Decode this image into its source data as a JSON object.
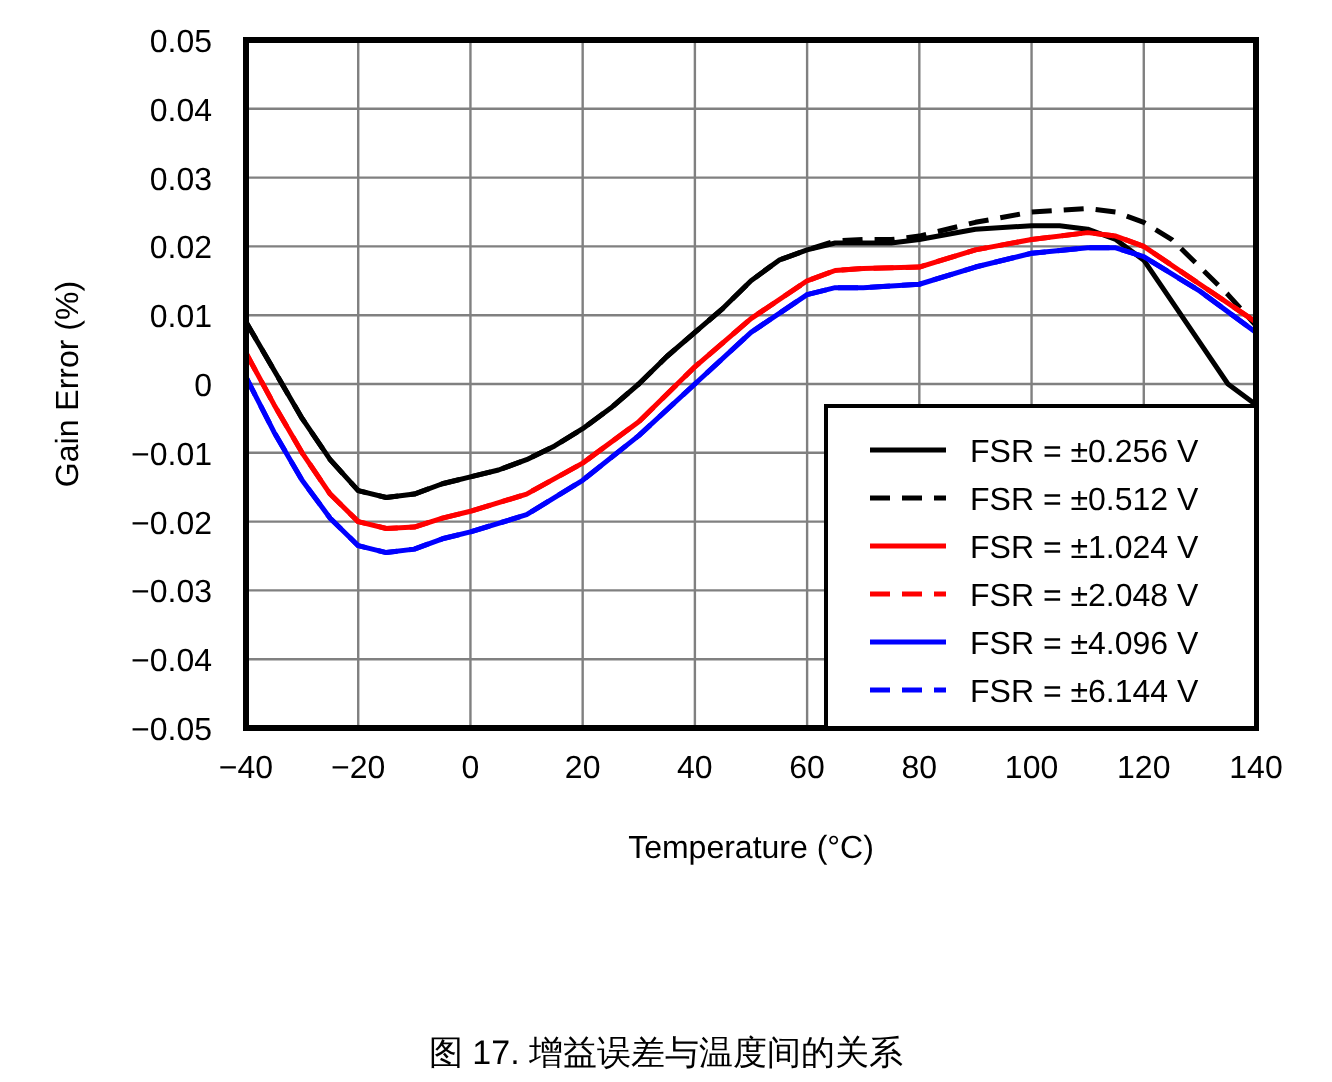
{
  "chart_data": {
    "type": "line",
    "xlabel": "Temperature (°C)",
    "ylabel": "Gain Error (%)",
    "xlim": [
      -40,
      140
    ],
    "xticks": [
      {
        "value": -40,
        "label": "−40"
      },
      {
        "value": -20,
        "label": "−20"
      },
      0,
      20,
      40,
      60,
      80,
      100,
      120,
      140
    ],
    "ylim": [
      -0.05,
      0.05
    ],
    "yticks": [
      {
        "value": -0.05,
        "label": "−0.05"
      },
      {
        "value": -0.04,
        "label": "−0.04"
      },
      {
        "value": -0.03,
        "label": "−0.03"
      },
      {
        "value": -0.02,
        "label": "−0.02"
      },
      {
        "value": -0.01,
        "label": "−0.01"
      },
      0,
      0.01,
      0.02,
      0.03,
      0.04,
      0.05
    ],
    "grid": true,
    "legend": "bottom right",
    "series": [
      {
        "name": "FSR = ±0.256 V",
        "color": "#000000",
        "line_style": "solid",
        "x": [
          -40,
          -35,
          -30,
          -25,
          -20,
          -15,
          -10,
          -5,
          0,
          5,
          10,
          15,
          20,
          25,
          30,
          35,
          40,
          45,
          50,
          55,
          60,
          65,
          70,
          75,
          80,
          90,
          100,
          105,
          110,
          115,
          120,
          125,
          130,
          135,
          140
        ],
        "values": [
          0.009,
          0.002,
          -0.005,
          -0.011,
          -0.0155,
          -0.0165,
          -0.016,
          -0.0145,
          -0.0135,
          -0.0125,
          -0.011,
          -0.009,
          -0.0065,
          -0.0035,
          0.0,
          0.004,
          0.0075,
          0.011,
          0.015,
          0.018,
          0.0195,
          0.0205,
          0.0205,
          0.0205,
          0.021,
          0.0225,
          0.023,
          0.023,
          0.0225,
          0.021,
          0.018,
          0.012,
          0.006,
          0.0,
          -0.003
        ]
      },
      {
        "name": "FSR = ±0.512 V",
        "color": "#000000",
        "line_style": "dashed",
        "x": [
          -40,
          -35,
          -30,
          -25,
          -20,
          -15,
          -10,
          -5,
          0,
          5,
          10,
          15,
          20,
          25,
          30,
          35,
          40,
          45,
          50,
          55,
          60,
          65,
          70,
          75,
          80,
          90,
          100,
          110,
          115,
          120,
          125,
          130,
          135,
          140
        ],
        "values": [
          0.009,
          0.002,
          -0.005,
          -0.011,
          -0.0155,
          -0.0165,
          -0.016,
          -0.0145,
          -0.0135,
          -0.0125,
          -0.011,
          -0.009,
          -0.0065,
          -0.0035,
          0.0,
          0.004,
          0.0075,
          0.011,
          0.015,
          0.018,
          0.0195,
          0.0208,
          0.021,
          0.021,
          0.0215,
          0.0235,
          0.025,
          0.0255,
          0.025,
          0.0235,
          0.021,
          0.017,
          0.013,
          0.0085
        ]
      },
      {
        "name": "FSR = ±1.024 V",
        "color": "#ff0000",
        "line_style": "solid",
        "x": [
          -40,
          -35,
          -30,
          -25,
          -20,
          -15,
          -10,
          -5,
          0,
          10,
          20,
          30,
          40,
          50,
          60,
          65,
          70,
          80,
          90,
          100,
          110,
          115,
          120,
          130,
          140
        ],
        "values": [
          0.0045,
          -0.003,
          -0.01,
          -0.016,
          -0.02,
          -0.021,
          -0.0208,
          -0.0195,
          -0.0185,
          -0.016,
          -0.0115,
          -0.0055,
          0.0025,
          0.0095,
          0.015,
          0.0165,
          0.0168,
          0.017,
          0.0195,
          0.021,
          0.022,
          0.0215,
          0.02,
          0.0145,
          0.009
        ]
      },
      {
        "name": "FSR = ±2.048 V",
        "color": "#ff0000",
        "line_style": "dashed",
        "x": [
          -40,
          -35,
          -30,
          -25,
          -20,
          -15,
          -10,
          -5,
          0,
          10,
          20,
          30,
          40,
          50,
          60,
          65,
          70,
          80,
          90,
          100,
          110,
          115,
          120,
          130,
          140
        ],
        "values": [
          0.0045,
          -0.003,
          -0.01,
          -0.016,
          -0.02,
          -0.021,
          -0.0208,
          -0.0195,
          -0.0185,
          -0.016,
          -0.0115,
          -0.0055,
          0.0025,
          0.0095,
          0.015,
          0.0165,
          0.0168,
          0.017,
          0.0195,
          0.021,
          0.022,
          0.0215,
          0.02,
          0.0145,
          0.009
        ]
      },
      {
        "name": "FSR = ±4.096 V",
        "color": "#0000ff",
        "line_style": "solid",
        "x": [
          -40,
          -35,
          -30,
          -25,
          -20,
          -15,
          -10,
          -5,
          0,
          10,
          20,
          30,
          40,
          50,
          60,
          65,
          70,
          80,
          90,
          100,
          110,
          115,
          120,
          130,
          140
        ],
        "values": [
          0.001,
          -0.007,
          -0.014,
          -0.0195,
          -0.0235,
          -0.0245,
          -0.024,
          -0.0225,
          -0.0215,
          -0.019,
          -0.014,
          -0.0075,
          0.0,
          0.0075,
          0.013,
          0.014,
          0.014,
          0.0145,
          0.017,
          0.019,
          0.0198,
          0.0198,
          0.0185,
          0.0135,
          0.0075
        ]
      },
      {
        "name": "FSR = ±6.144 V",
        "color": "#0000ff",
        "line_style": "dashed",
        "x": [
          -40,
          -35,
          -30,
          -25,
          -20,
          -15,
          -10,
          -5,
          0,
          10,
          20,
          30,
          40,
          50,
          60,
          65,
          70,
          80,
          90,
          100,
          110,
          115,
          120,
          130,
          140
        ],
        "values": [
          0.001,
          -0.007,
          -0.014,
          -0.0195,
          -0.0235,
          -0.0245,
          -0.024,
          -0.0225,
          -0.0215,
          -0.019,
          -0.014,
          -0.0075,
          0.0,
          0.0075,
          0.013,
          0.014,
          0.014,
          0.0145,
          0.017,
          0.019,
          0.0198,
          0.0198,
          0.0185,
          0.0135,
          0.0075
        ]
      }
    ],
    "annotations": [
      "图 17. 增益误差与温度间的关系"
    ]
  }
}
